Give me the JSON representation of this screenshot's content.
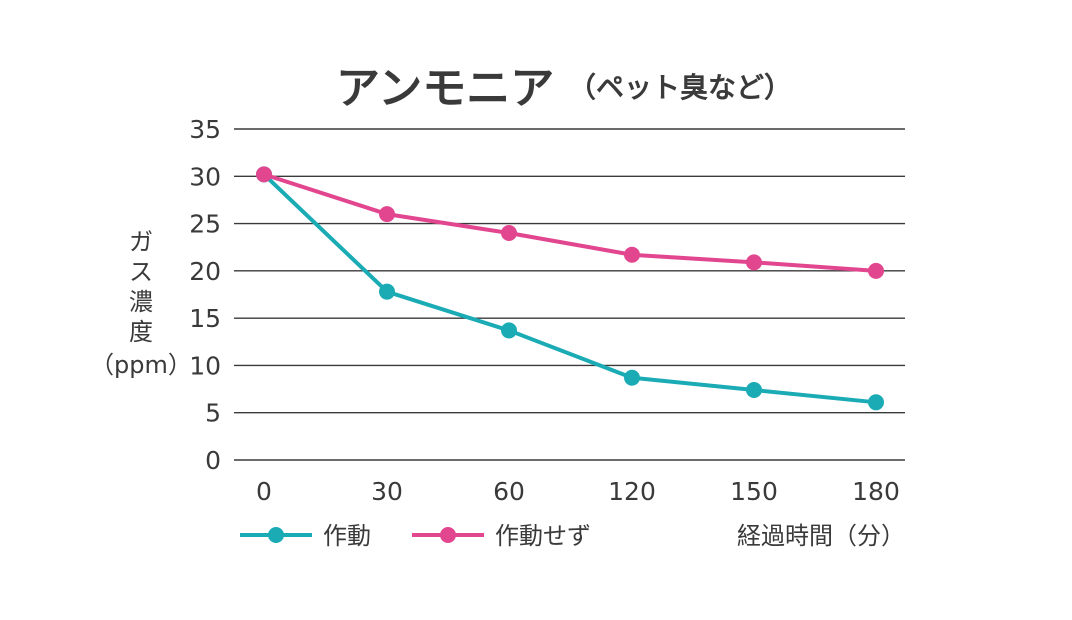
{
  "chart_data": {
    "type": "line",
    "title": "アンモニア",
    "subtitle": "（ペット臭など）",
    "ylabel_lines": [
      "ガ",
      "ス",
      "濃",
      "度",
      "（ppm）"
    ],
    "xlabel": "経過時間（分）",
    "categories": [
      "0",
      "30",
      "60",
      "120",
      "150",
      "180"
    ],
    "ylim": [
      0,
      35
    ],
    "yticks": [
      0,
      5,
      10,
      15,
      20,
      25,
      30,
      35
    ],
    "grid": true,
    "legend_position": "bottom-left",
    "series": [
      {
        "name": "作動",
        "color": "#1aabb5",
        "values": [
          30.2,
          17.8,
          13.7,
          8.7,
          7.4,
          6.1
        ]
      },
      {
        "name": "作動せず",
        "color": "#e2468f",
        "values": [
          30.2,
          26.0,
          24.0,
          21.7,
          20.9,
          20.0
        ]
      }
    ]
  }
}
